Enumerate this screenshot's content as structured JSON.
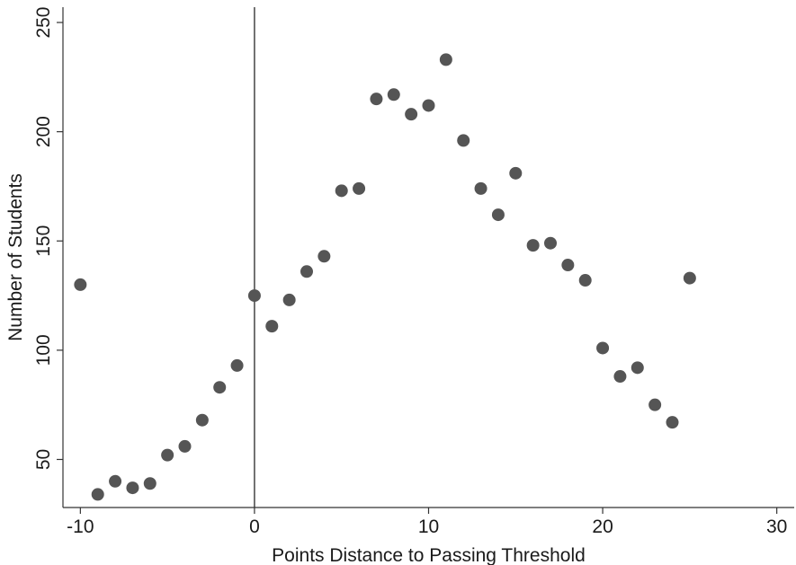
{
  "chart_data": {
    "type": "scatter",
    "title": "",
    "xlabel": "Points Distance to Passing Threshold",
    "ylabel": "Number of Students",
    "xlim": [
      -11,
      31
    ],
    "ylim": [
      28,
      257
    ],
    "xticks": [
      -10,
      0,
      10,
      20,
      30
    ],
    "yticks": [
      50,
      100,
      150,
      200,
      250
    ],
    "xtick_labels": [
      "-10",
      "0",
      "10",
      "20",
      "30"
    ],
    "ytick_labels": [
      "50",
      "100",
      "150",
      "200",
      "250"
    ],
    "reference_line_x": 0,
    "grid": false,
    "legend": "none",
    "marker_color": "#555555",
    "points": [
      {
        "x": -10,
        "y": 130
      },
      {
        "x": -9,
        "y": 34
      },
      {
        "x": -8,
        "y": 40
      },
      {
        "x": -7,
        "y": 37
      },
      {
        "x": -6,
        "y": 39
      },
      {
        "x": -5,
        "y": 52
      },
      {
        "x": -4,
        "y": 56
      },
      {
        "x": -3,
        "y": 68
      },
      {
        "x": -2,
        "y": 83
      },
      {
        "x": -1,
        "y": 93
      },
      {
        "x": 0,
        "y": 125
      },
      {
        "x": 1,
        "y": 111
      },
      {
        "x": 2,
        "y": 123
      },
      {
        "x": 3,
        "y": 136
      },
      {
        "x": 4,
        "y": 143
      },
      {
        "x": 5,
        "y": 173
      },
      {
        "x": 6,
        "y": 174
      },
      {
        "x": 7,
        "y": 215
      },
      {
        "x": 8,
        "y": 217
      },
      {
        "x": 9,
        "y": 208
      },
      {
        "x": 10,
        "y": 212
      },
      {
        "x": 11,
        "y": 233
      },
      {
        "x": 12,
        "y": 196
      },
      {
        "x": 13,
        "y": 174
      },
      {
        "x": 14,
        "y": 162
      },
      {
        "x": 15,
        "y": 181
      },
      {
        "x": 16,
        "y": 148
      },
      {
        "x": 17,
        "y": 149
      },
      {
        "x": 18,
        "y": 139
      },
      {
        "x": 19,
        "y": 132
      },
      {
        "x": 20,
        "y": 101
      },
      {
        "x": 21,
        "y": 88
      },
      {
        "x": 22,
        "y": 92
      },
      {
        "x": 23,
        "y": 75
      },
      {
        "x": 24,
        "y": 67
      },
      {
        "x": 25,
        "y": 133
      }
    ]
  }
}
